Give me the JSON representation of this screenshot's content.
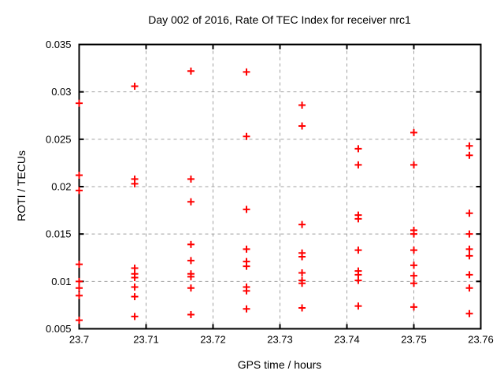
{
  "chart_data": {
    "type": "scatter",
    "title": "Day 002 of 2016, Rate Of TEC Index for receiver nrc1",
    "xlabel": "GPS time / hours",
    "ylabel": "ROTI / TECUs",
    "xlim": [
      23.7,
      23.76
    ],
    "ylim": [
      0.005,
      0.035
    ],
    "xticks": [
      23.7,
      23.71,
      23.72,
      23.73,
      23.74,
      23.75,
      23.76
    ],
    "xtick_labels": [
      "23.7",
      "23.71",
      "23.72",
      "23.73",
      "23.74",
      "23.75",
      "23.76"
    ],
    "yticks": [
      0.005,
      0.01,
      0.015,
      0.02,
      0.025,
      0.03,
      0.035
    ],
    "ytick_labels": [
      "0.005",
      "0.01",
      "0.015",
      "0.02",
      "0.025",
      "0.03",
      "0.035"
    ],
    "grid": true,
    "legend": "none",
    "marker": "plus",
    "marker_color": "#ff0000",
    "grid_color": "#a0a0a0",
    "axis_color": "#000000",
    "background_color": "#ffffff",
    "series": [
      {
        "name": "ROTI",
        "points": [
          [
            23.7,
            0.0288
          ],
          [
            23.7,
            0.0212
          ],
          [
            23.7,
            0.0196
          ],
          [
            23.7,
            0.0118
          ],
          [
            23.7,
            0.01
          ],
          [
            23.7,
            0.0093
          ],
          [
            23.7,
            0.0085
          ],
          [
            23.7,
            0.0059
          ],
          [
            23.7083,
            0.0306
          ],
          [
            23.7083,
            0.0208
          ],
          [
            23.7083,
            0.0203
          ],
          [
            23.7083,
            0.0114
          ],
          [
            23.7083,
            0.0108
          ],
          [
            23.7083,
            0.0104
          ],
          [
            23.7083,
            0.0094
          ],
          [
            23.7083,
            0.0084
          ],
          [
            23.7083,
            0.0063
          ],
          [
            23.7167,
            0.0322
          ],
          [
            23.7167,
            0.0208
          ],
          [
            23.7167,
            0.0184
          ],
          [
            23.7167,
            0.0139
          ],
          [
            23.7167,
            0.0122
          ],
          [
            23.7167,
            0.0108
          ],
          [
            23.7167,
            0.0105
          ],
          [
            23.7167,
            0.0093
          ],
          [
            23.7167,
            0.0065
          ],
          [
            23.725,
            0.0321
          ],
          [
            23.725,
            0.0253
          ],
          [
            23.725,
            0.0176
          ],
          [
            23.725,
            0.0134
          ],
          [
            23.725,
            0.0121
          ],
          [
            23.725,
            0.0116
          ],
          [
            23.725,
            0.0094
          ],
          [
            23.725,
            0.009
          ],
          [
            23.725,
            0.0071
          ],
          [
            23.7333,
            0.0286
          ],
          [
            23.7333,
            0.0264
          ],
          [
            23.7333,
            0.016
          ],
          [
            23.7333,
            0.013
          ],
          [
            23.7333,
            0.0126
          ],
          [
            23.7333,
            0.0109
          ],
          [
            23.7333,
            0.0101
          ],
          [
            23.7333,
            0.0098
          ],
          [
            23.7333,
            0.0072
          ],
          [
            23.7417,
            0.024
          ],
          [
            23.7417,
            0.0223
          ],
          [
            23.7417,
            0.017
          ],
          [
            23.7417,
            0.0166
          ],
          [
            23.7417,
            0.0133
          ],
          [
            23.7417,
            0.0111
          ],
          [
            23.7417,
            0.0107
          ],
          [
            23.7417,
            0.0101
          ],
          [
            23.7417,
            0.0074
          ],
          [
            23.75,
            0.0257
          ],
          [
            23.75,
            0.0223
          ],
          [
            23.75,
            0.0154
          ],
          [
            23.75,
            0.015
          ],
          [
            23.75,
            0.0133
          ],
          [
            23.75,
            0.0117
          ],
          [
            23.75,
            0.0106
          ],
          [
            23.75,
            0.0098
          ],
          [
            23.75,
            0.0073
          ],
          [
            23.7583,
            0.0243
          ],
          [
            23.7583,
            0.0233
          ],
          [
            23.7583,
            0.0172
          ],
          [
            23.7583,
            0.015
          ],
          [
            23.7583,
            0.0134
          ],
          [
            23.7583,
            0.0127
          ],
          [
            23.7583,
            0.0107
          ],
          [
            23.7583,
            0.0093
          ],
          [
            23.7583,
            0.0066
          ]
        ]
      }
    ]
  }
}
